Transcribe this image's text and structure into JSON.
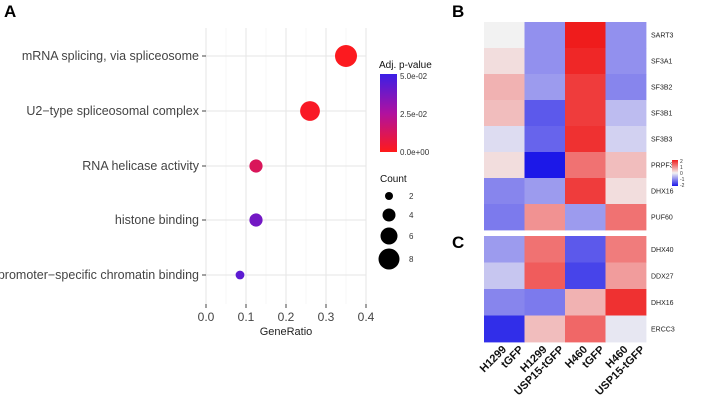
{
  "panels": {
    "A": "A",
    "B": "B",
    "C": "C"
  },
  "dotplot": {
    "colorbar_title": "Adj. p-value",
    "colorbar_ticks": [
      "5.0e-02",
      "2.5e-02",
      "0.0e+00"
    ],
    "size_legend_title": "Count",
    "size_legend_values": [
      "2",
      "4",
      "6",
      "8"
    ]
  },
  "heatmap_legend": {
    "ticks": [
      "2",
      "1",
      "0",
      "-1",
      "-2"
    ]
  },
  "chart_data": [
    {
      "type": "scatter",
      "title": "",
      "xlabel": "GeneRatio",
      "ylabel": "",
      "xlim": [
        0.0,
        0.4
      ],
      "x_ticks": [
        "0.0",
        "0.1",
        "0.2",
        "0.3",
        "0.4"
      ],
      "x_tick_values": [
        0.0,
        0.1,
        0.2,
        0.3,
        0.4
      ],
      "categories": [
        "mRNA splicing, via spliceosome",
        "U2−type spliceosomal complex",
        "RNA helicase activity",
        "histone binding",
        "promoter−specific chromatin binding"
      ],
      "x": [
        0.35,
        0.26,
        0.125,
        0.125,
        0.085
      ],
      "count": [
        8,
        7,
        4,
        4,
        2
      ],
      "p_adjust": [
        0.001,
        0.002,
        0.012,
        0.038,
        0.043
      ],
      "color_scale": {
        "low": "#ff1a1a",
        "high": "#3b1fe6",
        "min": 0.0,
        "max": 0.05
      }
    },
    {
      "type": "heatmap",
      "rows": [
        "SART3",
        "SF3A1",
        "SF3B2",
        "SF3B1",
        "SF3B3",
        "PRPF3",
        "DHX16",
        "PUF60"
      ],
      "columns": [
        "H1299 tGFP",
        "H1299 USP15-tGFP",
        "H460 tGFP",
        "H460 USP15-tGFP"
      ],
      "column_labels": [
        {
          "line1": "H1299",
          "line2": "tGFP"
        },
        {
          "line1": "H1299",
          "line2": "USP15-tGFP"
        },
        {
          "line1": "H460",
          "line2": "tGFP"
        },
        {
          "line1": "H460",
          "line2": "USP15-tGFP"
        }
      ],
      "values": [
        [
          0.0,
          -0.9,
          2.0,
          -0.9
        ],
        [
          0.2,
          -0.9,
          1.9,
          -0.9
        ],
        [
          0.6,
          -0.8,
          1.7,
          -1.0
        ],
        [
          0.5,
          -1.4,
          1.7,
          -0.5
        ],
        [
          -0.2,
          -1.3,
          1.8,
          -0.3
        ],
        [
          0.2,
          -2.0,
          1.2,
          0.5
        ],
        [
          -1.0,
          -0.8,
          1.7,
          0.2
        ],
        [
          -1.1,
          0.9,
          -0.8,
          1.2
        ]
      ],
      "scale": {
        "min": -2,
        "max": 2,
        "low": "#1c18e8",
        "mid": "#f2f2f2",
        "high": "#ef1c1c"
      }
    },
    {
      "type": "heatmap",
      "rows": [
        "DHX40",
        "DDX27",
        "DHX16",
        "ERCC3"
      ],
      "columns": [
        "H1299 tGFP",
        "H1299 USP15-tGFP",
        "H460 tGFP",
        "H460 USP15-tGFP"
      ],
      "values": [
        [
          -0.8,
          1.2,
          -1.4,
          1.1
        ],
        [
          -0.4,
          1.4,
          -1.6,
          0.8
        ],
        [
          -1.0,
          -1.1,
          0.6,
          1.8
        ],
        [
          -1.8,
          0.5,
          1.3,
          -0.1
        ]
      ],
      "scale": {
        "min": -2,
        "max": 2,
        "low": "#1c18e8",
        "mid": "#f2f2f2",
        "high": "#ef1c1c"
      }
    }
  ]
}
